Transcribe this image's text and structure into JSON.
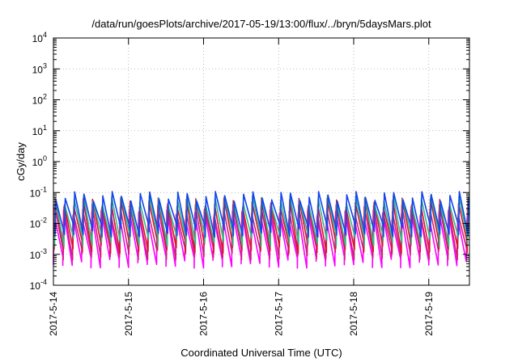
{
  "chart_data": {
    "type": "line",
    "title": "/data/run/goesPlots/archive/2017-05-19/13:00/flux/../bryn/5daysMars.plot",
    "xlabel": "Coordinated Universal Time (UTC)",
    "ylabel": "cGy/day",
    "y_scale": "log",
    "ylim": [
      0.0001,
      10000
    ],
    "y_ticks": [
      {
        "base": "10",
        "exp": "-4",
        "value": 0.0001
      },
      {
        "base": "10",
        "exp": "-3",
        "value": 0.001
      },
      {
        "base": "10",
        "exp": "-2",
        "value": 0.01
      },
      {
        "base": "10",
        "exp": "-1",
        "value": 0.1
      },
      {
        "base": "10",
        "exp": "0",
        "value": 1
      },
      {
        "base": "10",
        "exp": "1",
        "value": 10
      },
      {
        "base": "10",
        "exp": "2",
        "value": 100
      },
      {
        "base": "10",
        "exp": "3",
        "value": 1000
      },
      {
        "base": "10",
        "exp": "4",
        "value": 10000
      }
    ],
    "x_ticks": [
      "2017-5-14",
      "2017-5-15",
      "2017-5-16",
      "2017-5-17",
      "2017-5-18",
      "2017-5-19"
    ],
    "xlim": [
      "2017-05-14 00:00",
      "2017-05-19 13:00"
    ],
    "grid": true,
    "sawtooth_period_hours": 3,
    "series": [
      {
        "color": "#ff00ff",
        "peak": 0.02,
        "trough": 0.0006
      },
      {
        "color": "#cc2277",
        "peak": 0.03,
        "trough": 0.0011
      },
      {
        "color": "#dd1133",
        "peak": 0.05,
        "trough": 0.0018
      },
      {
        "color": "#33bb88",
        "peak": 0.06,
        "trough": 0.003
      },
      {
        "color": "#1144ee",
        "peak": 0.08,
        "trough": 0.006
      }
    ]
  }
}
